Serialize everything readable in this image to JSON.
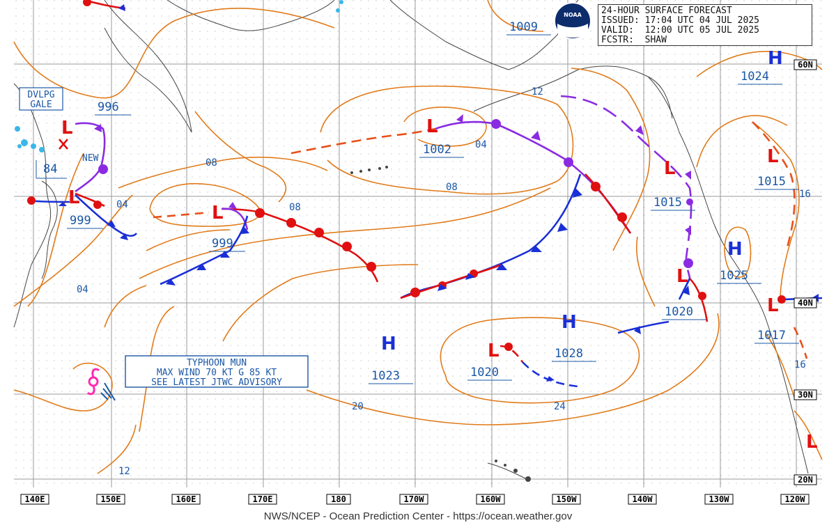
{
  "header": {
    "line1": "24-HOUR SURFACE FORECAST",
    "line2": "ISSUED: 17:04 UTC 04 JUL 2025",
    "line3": "VALID:  12:00 UTC 05 JUL 2025",
    "line4": "FCSTR:  SHAW",
    "logo": "NOAA"
  },
  "footer": "NWS/NCEP - Ocean Prediction Center - https://ocean.weather.gov",
  "longitude_labels": [
    "140E",
    "150E",
    "160E",
    "170E",
    "180",
    "170W",
    "160W",
    "150W",
    "140W",
    "130W",
    "120W"
  ],
  "latitude_labels": [
    "60N",
    "40N",
    "30N",
    "20N"
  ],
  "pressure_centers": [
    {
      "type": "L",
      "value": "996"
    },
    {
      "type": "L",
      "value": "999"
    },
    {
      "type": "L",
      "value": "999"
    },
    {
      "type": "L",
      "value": "1002"
    },
    {
      "type": "L",
      "value": "1015"
    },
    {
      "type": "L",
      "value": "1015"
    },
    {
      "type": "L",
      "value": "1020"
    },
    {
      "type": "L",
      "value": "1017"
    },
    {
      "type": "L",
      "value": "1020"
    },
    {
      "type": "L",
      "value": "1009"
    },
    {
      "type": "H",
      "value": "1024"
    },
    {
      "type": "H",
      "value": "1025"
    },
    {
      "type": "H",
      "value": "1023"
    },
    {
      "type": "H",
      "value": "1028"
    },
    {
      "type": "L",
      "value": "84"
    }
  ],
  "isobar_labels": [
    "08",
    "08",
    "04",
    "04",
    "04",
    "08",
    "08",
    "12",
    "12",
    "16",
    "16",
    "20",
    "24"
  ],
  "annotations": {
    "dvlpg_gale_line1": "DVLPG",
    "dvlpg_gale_line2": "GALE",
    "new": "NEW",
    "typhoon_line1": "TYPHOON MUN",
    "typhoon_line2": "MAX WIND 70 KT G 85 KT",
    "typhoon_line3": "SEE LATEST JTWC ADVISORY"
  },
  "colors": {
    "isobar": "#e07b1a",
    "warm_front": "#e01010",
    "cold_front": "#1a2fd6",
    "occluded_front": "#8a2be2",
    "label": "#1a57a6",
    "grid": "#a0a0a0"
  }
}
